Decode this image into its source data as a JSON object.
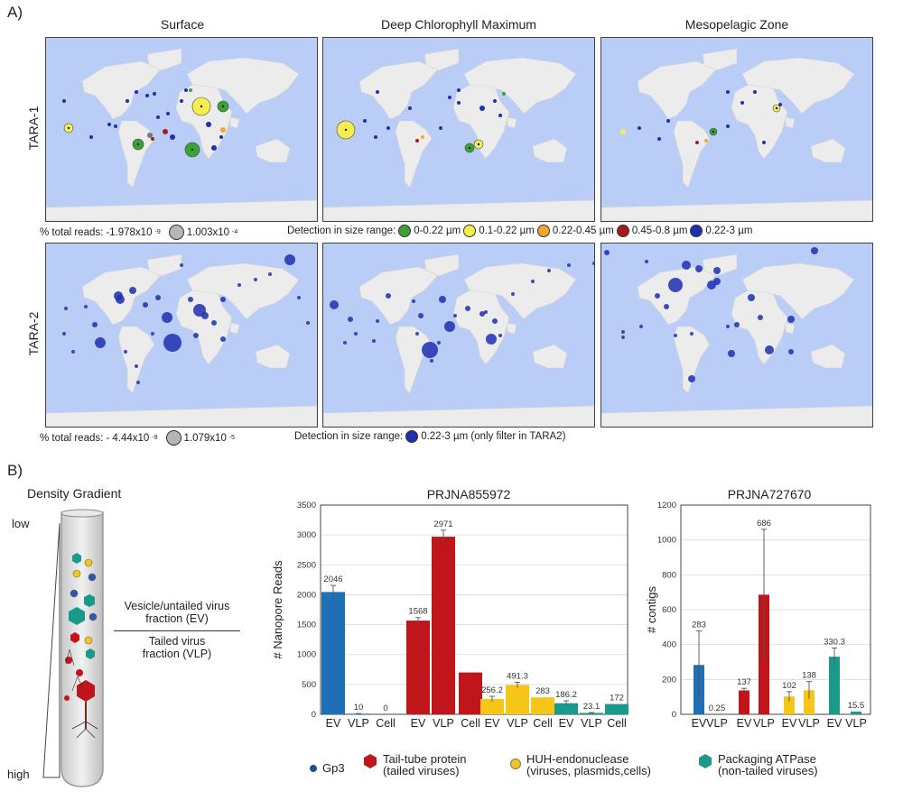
{
  "panel_a": {
    "letter": "A)",
    "columns": [
      "Surface",
      "Deep Chlorophyll Maximum",
      "Mesopelagic Zone"
    ],
    "rows": [
      "TARA-1",
      "TARA-2"
    ],
    "legend1": {
      "reads_label": "% total reads: ",
      "reads_min": "-1.978x10",
      "reads_min_exp": "-9",
      "reads_max": "1.003x10",
      "reads_max_exp": "-4",
      "detection_label": "Detection in size range:",
      "ranges": [
        {
          "label": "0-0.22 µm",
          "color": "#3aa335"
        },
        {
          "label": "0.1-0.22 µm",
          "color": "#f5ef4e"
        },
        {
          "label": "0.22-0.45 µm",
          "color": "#f0a830"
        },
        {
          "label": "0.45-0.8 µm",
          "color": "#a61c1c"
        },
        {
          "label": "0.22-3 µm",
          "color": "#1f2fb0"
        }
      ]
    },
    "legend2": {
      "reads_label": "% total reads: ",
      "reads_min": "- 4.44x10",
      "reads_min_exp": "-9",
      "reads_max": "1.079x10",
      "reads_max_exp": "-5",
      "detection_label": "Detection in size range:",
      "range_label": "0.22-3 µm (only filter in TARA2)",
      "range_color": "#1f2fb0"
    }
  },
  "panel_b": {
    "letter": "B)",
    "tube_title": "Density Gradient",
    "low_label": "low",
    "high_label": "high",
    "ev_label_1": "Vesicle/untailed virus",
    "ev_label_2": "fraction (EV)",
    "vlp_label_1": "Tailed virus",
    "vlp_label_2": "fraction (VLP)",
    "key": [
      {
        "label1": "Gp3",
        "label2": "",
        "icon": "dot",
        "color": "#1f4e9c"
      },
      {
        "label1": "Tail-tube protein",
        "label2": "(tailed viruses)",
        "icon": "hexagon",
        "color": "#c0161b"
      },
      {
        "label1": "HUH-endonuclease",
        "label2": "(viruses, plasmids,cells)",
        "icon": "circle",
        "color": "#f5c518"
      },
      {
        "label1": "Packaging ATPase",
        "label2": "(non-tailed viruses)",
        "icon": "hexagon",
        "color": "#1a9a8a"
      }
    ]
  },
  "chart_data": [
    {
      "type": "bar",
      "title": "PRJNA855972",
      "ylabel": "# Nanopore Reads",
      "xlabel": "",
      "ylim": [
        0,
        3500
      ],
      "yticks": [
        0,
        500,
        1000,
        1500,
        2000,
        2500,
        3000,
        3500
      ],
      "categories": [
        "EV",
        "VLP",
        "Cell",
        "EV",
        "VLP",
        "Cell",
        "EV",
        "VLP",
        "Cell",
        "EV",
        "VLP",
        "Cell"
      ],
      "values": [
        2046,
        10,
        0,
        1568,
        2971,
        700,
        256.2,
        491.3,
        283,
        186.2,
        23.1,
        172
      ],
      "errors": [
        110,
        3,
        0,
        50,
        110,
        0,
        45,
        45,
        0,
        40,
        6,
        0
      ],
      "labels": [
        "2046",
        "10",
        "0",
        "1568",
        "2971",
        "",
        "256.2",
        "491.3",
        "283",
        "186.2",
        "23.1",
        "172"
      ],
      "colors": [
        "#1f6fb7",
        "#1f6fb7",
        "#1f6fb7",
        "#c0161b",
        "#c0161b",
        "#c0161b",
        "#f5c518",
        "#f5c518",
        "#f5c518",
        "#1a9a8a",
        "#1a9a8a",
        "#1a9a8a"
      ],
      "grid": true
    },
    {
      "type": "bar",
      "title": "PRJNA727670",
      "ylabel": "# contigs",
      "xlabel": "",
      "ylim": [
        0,
        1200
      ],
      "yticks": [
        0,
        200,
        400,
        600,
        800,
        1000,
        1200
      ],
      "categories": [
        "EV",
        "VLP",
        "EV",
        "VLP",
        "EV",
        "VLP",
        "EV",
        "VLP"
      ],
      "values": [
        283,
        0.25,
        137,
        686,
        102,
        138,
        330.3,
        15.5
      ],
      "errors": [
        195,
        0,
        12,
        375,
        28,
        50,
        50,
        0
      ],
      "labels": [
        "283",
        "0.25",
        "137",
        "686",
        "102",
        "138",
        "330.3",
        "15.5"
      ],
      "colors": [
        "#1f6fb7",
        "#1f6fb7",
        "#c0161b",
        "#c0161b",
        "#f5c518",
        "#f5c518",
        "#1a9a8a",
        "#1a9a8a"
      ],
      "grid": true
    }
  ]
}
